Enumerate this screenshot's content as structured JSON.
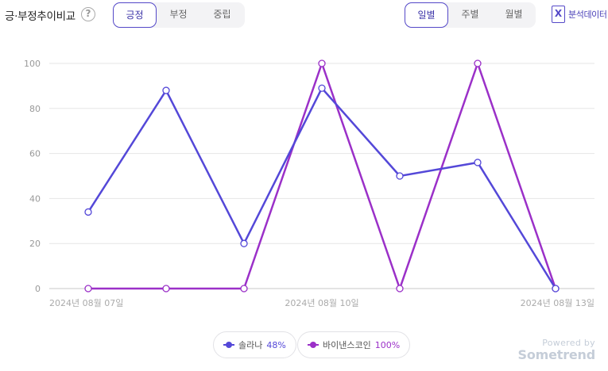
{
  "header": {
    "title": "긍·부정추이비교",
    "help_glyph": "?",
    "sentiment_tabs": [
      {
        "label": "긍정",
        "active": true
      },
      {
        "label": "부정",
        "active": false
      },
      {
        "label": "중립",
        "active": false
      }
    ],
    "period_tabs": [
      {
        "label": "일별",
        "active": true
      },
      {
        "label": "주별",
        "active": false
      },
      {
        "label": "월별",
        "active": false
      }
    ],
    "excel_glyph": "X",
    "excel_label": "분석데이터"
  },
  "colors": {
    "accent": "#5448c8",
    "series_1": "#5448d8",
    "series_2": "#9b30c8"
  },
  "chart_data": {
    "type": "line",
    "x": [
      "2024년 08월 07일",
      "2024년 08월 08일",
      "2024년 08월 09일",
      "2024년 08월 10일",
      "2024년 08월 11일",
      "2024년 08월 12일",
      "2024년 08월 13일"
    ],
    "x_tick_labels": [
      "2024년 08월 07일",
      "",
      "",
      "2024년 08월 10일",
      "",
      "",
      "2024년 08월 13일"
    ],
    "yticks": [
      0,
      20,
      40,
      60,
      80,
      100
    ],
    "ylim": [
      0,
      100
    ],
    "grid": true,
    "legend_position": "bottom",
    "series": [
      {
        "name": "솔라나",
        "values": [
          34,
          88,
          20,
          89,
          50,
          56,
          0
        ],
        "share": "48%",
        "color": "#5448d8"
      },
      {
        "name": "바이낸스코인",
        "values": [
          0,
          0,
          0,
          100,
          0,
          100,
          0
        ],
        "share": "100%",
        "color": "#9b30c8"
      }
    ]
  },
  "watermark": {
    "line1": "Powered by",
    "line2": "Sometrend"
  }
}
